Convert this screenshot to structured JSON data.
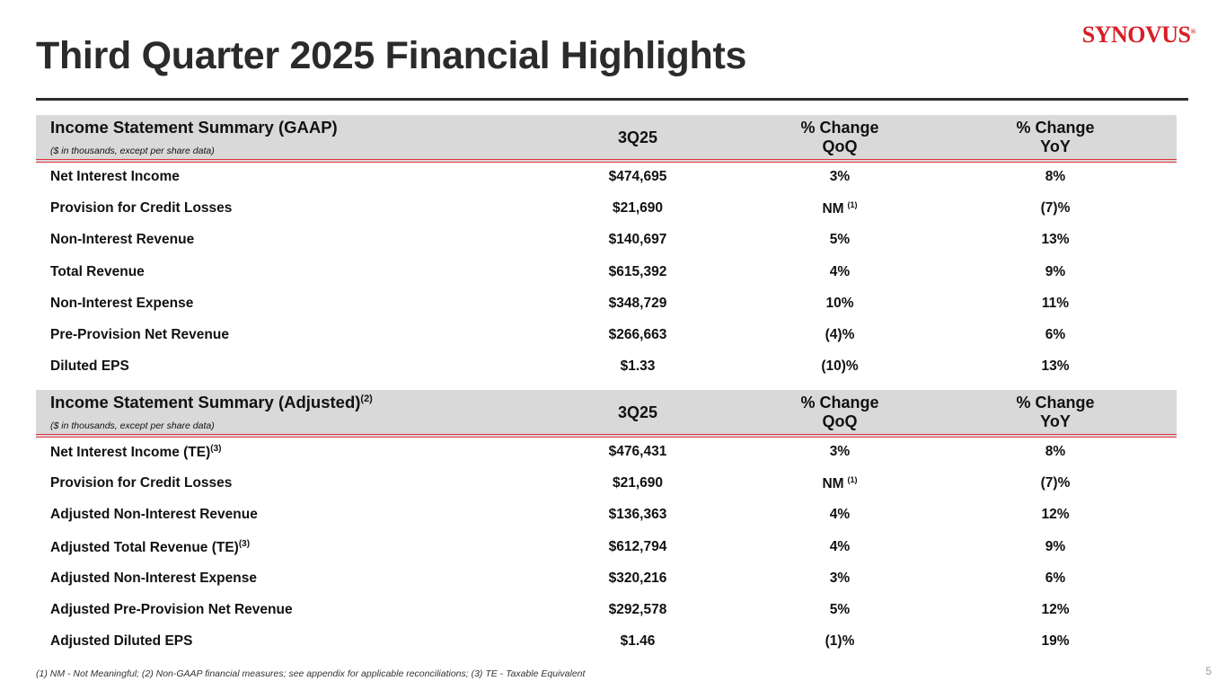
{
  "title": "Third Quarter 2025 Financial Highlights",
  "logo": "SYNOVUS",
  "gaap": {
    "title": "Income Statement Summary (GAAP)",
    "subtitle": "($ in thousands, except per share data)",
    "col1": "3Q25",
    "col2a": "% Change",
    "col2b": "QoQ",
    "col3a": "% Change",
    "col3b": "YoY",
    "rows": [
      {
        "label": "Net Interest Income",
        "sup": "",
        "value": "$474,695",
        "qoq": "3%",
        "qoq_sup": "",
        "yoy": "8%"
      },
      {
        "label": "Provision for Credit Losses",
        "sup": "",
        "value": "$21,690",
        "qoq": "NM",
        "qoq_sup": "(1)",
        "yoy": "(7)%"
      },
      {
        "label": "Non-Interest Revenue",
        "sup": "",
        "value": "$140,697",
        "qoq": "5%",
        "qoq_sup": "",
        "yoy": "13%"
      },
      {
        "label": "Total Revenue",
        "sup": "",
        "value": "$615,392",
        "qoq": "4%",
        "qoq_sup": "",
        "yoy": "9%"
      },
      {
        "label": "Non-Interest Expense",
        "sup": "",
        "value": "$348,729",
        "qoq": "10%",
        "qoq_sup": "",
        "yoy": "11%"
      },
      {
        "label": "Pre-Provision Net Revenue",
        "sup": "",
        "value": "$266,663",
        "qoq": "(4)%",
        "qoq_sup": "",
        "yoy": "6%"
      },
      {
        "label": "Diluted EPS",
        "sup": "",
        "value": "$1.33",
        "qoq": "(10)%",
        "qoq_sup": "",
        "yoy": "13%"
      }
    ]
  },
  "adj": {
    "title": "Income Statement Summary (Adjusted)",
    "title_sup": "(2)",
    "subtitle": "($ in thousands, except per share data)",
    "col1": "3Q25",
    "col2a": "% Change",
    "col2b": "QoQ",
    "col3a": "% Change",
    "col3b": "YoY",
    "rows": [
      {
        "label": "Net Interest Income (TE)",
        "sup": "(3)",
        "value": "$476,431",
        "qoq": "3%",
        "qoq_sup": "",
        "yoy": "8%"
      },
      {
        "label": "Provision for Credit Losses",
        "sup": "",
        "value": "$21,690",
        "qoq": "NM",
        "qoq_sup": "(1)",
        "yoy": "(7)%"
      },
      {
        "label": "Adjusted Non-Interest Revenue",
        "sup": "",
        "value": "$136,363",
        "qoq": "4%",
        "qoq_sup": "",
        "yoy": "12%"
      },
      {
        "label": "Adjusted Total Revenue (TE)",
        "sup": "(3)",
        "value": "$612,794",
        "qoq": "4%",
        "qoq_sup": "",
        "yoy": "9%"
      },
      {
        "label": "Adjusted Non-Interest Expense",
        "sup": "",
        "value": "$320,216",
        "qoq": "3%",
        "qoq_sup": "",
        "yoy": "6%"
      },
      {
        "label": "Adjusted Pre-Provision Net Revenue",
        "sup": "",
        "value": "$292,578",
        "qoq": "5%",
        "qoq_sup": "",
        "yoy": "12%"
      },
      {
        "label": "Adjusted Diluted EPS",
        "sup": "",
        "value": "$1.46",
        "qoq": "(1)%",
        "qoq_sup": "",
        "yoy": "19%"
      }
    ]
  },
  "footnote": "(1) NM - Not Meaningful; (2) Non-GAAP financial measures; see appendix for applicable reconciliations; (3) TE - Taxable Equivalent",
  "page": "5"
}
